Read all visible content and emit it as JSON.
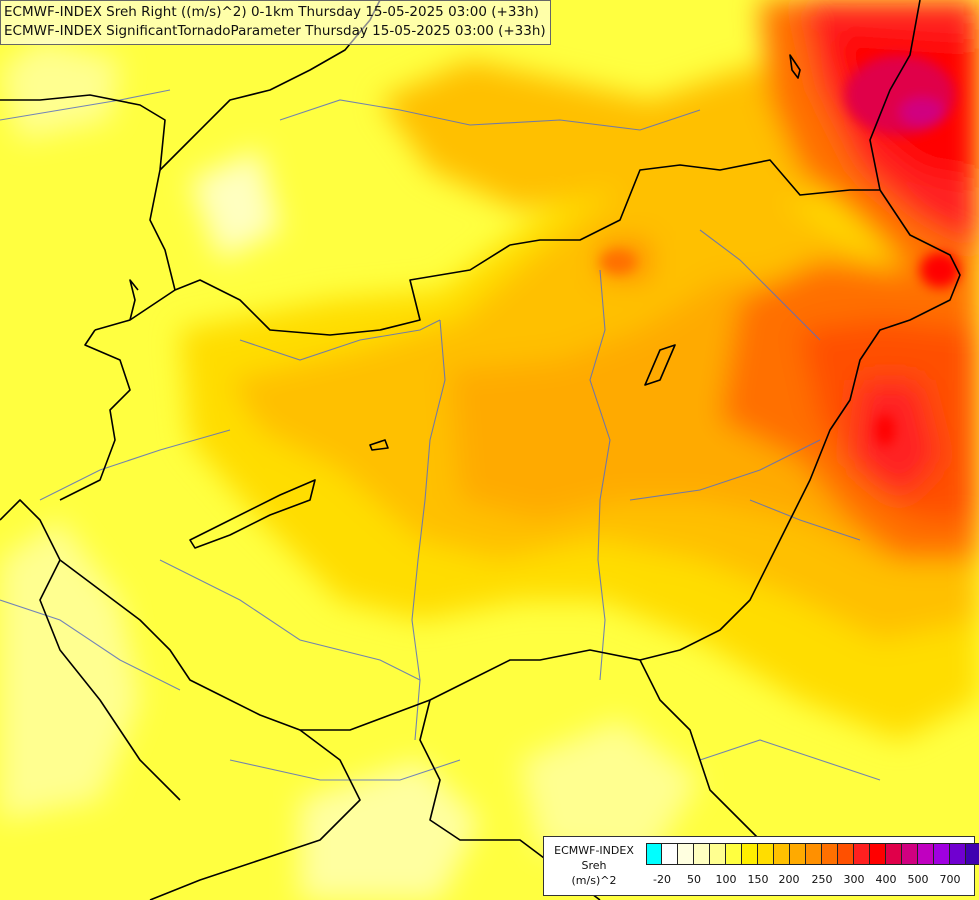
{
  "header": {
    "line1": "ECMWF-INDEX Sreh Right ((m/s)^2) 0-1km Thursday 15-05-2025 03:00 (+33h)",
    "line2": "ECMWF-INDEX SignificantTornadoParameter Thursday 15-05-2025 03:00 (+33h)"
  },
  "legend": {
    "title_line1": "ECMWF-INDEX",
    "title_line2": "Sreh",
    "title_line3": "(m/s)^2",
    "colors": [
      "#00ffff",
      "#ffffff",
      "#ffffe0",
      "#ffffc0",
      "#ffff90",
      "#ffff40",
      "#ffee00",
      "#ffdd00",
      "#ffc000",
      "#ffaa00",
      "#ff9000",
      "#ff7000",
      "#ff5000",
      "#ff2020",
      "#ff0000",
      "#e0004a",
      "#d00080",
      "#c000c0",
      "#a000e0",
      "#7000d0",
      "#4000b0",
      "#101080"
    ],
    "ticks": [
      "-20",
      "50",
      "100",
      "150",
      "200",
      "250",
      "300",
      "400",
      "500",
      "700"
    ]
  },
  "colors": {
    "border": "#000000",
    "river": "#5a6fc0",
    "field_low": "#ffff40",
    "field_mid": "#ffc000",
    "field_high": "#ff2020",
    "field_peak": "#e0004a"
  }
}
